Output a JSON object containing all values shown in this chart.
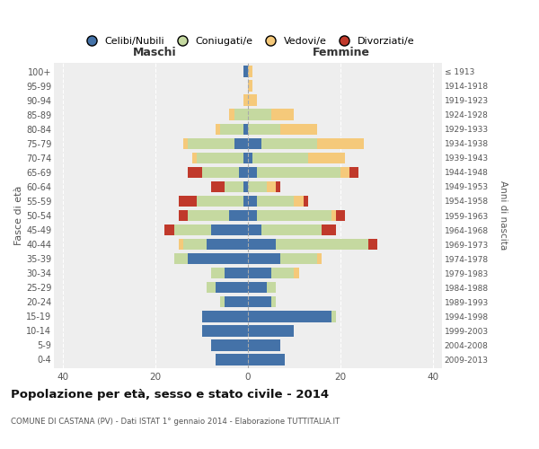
{
  "age_groups": [
    "0-4",
    "5-9",
    "10-14",
    "15-19",
    "20-24",
    "25-29",
    "30-34",
    "35-39",
    "40-44",
    "45-49",
    "50-54",
    "55-59",
    "60-64",
    "65-69",
    "70-74",
    "75-79",
    "80-84",
    "85-89",
    "90-94",
    "95-99",
    "100+"
  ],
  "birth_years": [
    "2009-2013",
    "2004-2008",
    "1999-2003",
    "1994-1998",
    "1989-1993",
    "1984-1988",
    "1979-1983",
    "1974-1978",
    "1969-1973",
    "1964-1968",
    "1959-1963",
    "1954-1958",
    "1949-1953",
    "1944-1948",
    "1939-1943",
    "1934-1938",
    "1929-1933",
    "1924-1928",
    "1919-1923",
    "1914-1918",
    "≤ 1913"
  ],
  "maschi": {
    "celibi": [
      7,
      8,
      10,
      10,
      5,
      7,
      5,
      13,
      9,
      8,
      4,
      1,
      1,
      2,
      1,
      3,
      1,
      0,
      0,
      0,
      1
    ],
    "coniugati": [
      0,
      0,
      0,
      0,
      1,
      2,
      3,
      3,
      5,
      8,
      9,
      10,
      4,
      8,
      10,
      10,
      5,
      3,
      0,
      0,
      0
    ],
    "vedovi": [
      0,
      0,
      0,
      0,
      0,
      0,
      0,
      0,
      1,
      0,
      0,
      0,
      0,
      0,
      1,
      1,
      1,
      1,
      1,
      0,
      0
    ],
    "divorziati": [
      0,
      0,
      0,
      0,
      0,
      0,
      0,
      0,
      0,
      2,
      2,
      4,
      3,
      3,
      0,
      0,
      0,
      0,
      0,
      0,
      0
    ]
  },
  "femmine": {
    "nubili": [
      8,
      7,
      10,
      18,
      5,
      4,
      5,
      7,
      6,
      3,
      2,
      2,
      0,
      2,
      1,
      3,
      0,
      0,
      0,
      0,
      0
    ],
    "coniugate": [
      0,
      0,
      0,
      1,
      1,
      2,
      5,
      8,
      20,
      13,
      16,
      8,
      4,
      18,
      12,
      12,
      7,
      5,
      0,
      0,
      0
    ],
    "vedove": [
      0,
      0,
      0,
      0,
      0,
      0,
      1,
      1,
      0,
      0,
      1,
      2,
      2,
      2,
      8,
      10,
      8,
      5,
      2,
      1,
      1
    ],
    "divorziate": [
      0,
      0,
      0,
      0,
      0,
      0,
      0,
      0,
      2,
      3,
      2,
      1,
      1,
      2,
      0,
      0,
      0,
      0,
      0,
      0,
      0
    ]
  },
  "colors": {
    "celibi": "#4472a8",
    "coniugati": "#c5d9a0",
    "vedovi": "#f5c97a",
    "divorziati": "#c0392b"
  },
  "xlim": 42,
  "title": "Popolazione per età, sesso e stato civile - 2014",
  "subtitle": "COMUNE DI CASTANA (PV) - Dati ISTAT 1° gennaio 2014 - Elaborazione TUTTITALIA.IT",
  "ylabel_left": "Fasce di età",
  "ylabel_right": "Anni di nascita",
  "xlabel_maschi": "Maschi",
  "xlabel_femmine": "Femmine",
  "legend_labels": [
    "Celibi/Nubili",
    "Coniugati/e",
    "Vedovi/e",
    "Divorziati/e"
  ],
  "background_color": "#ffffff",
  "plot_bg_color": "#eeeeee",
  "grid_color": "#ffffff"
}
